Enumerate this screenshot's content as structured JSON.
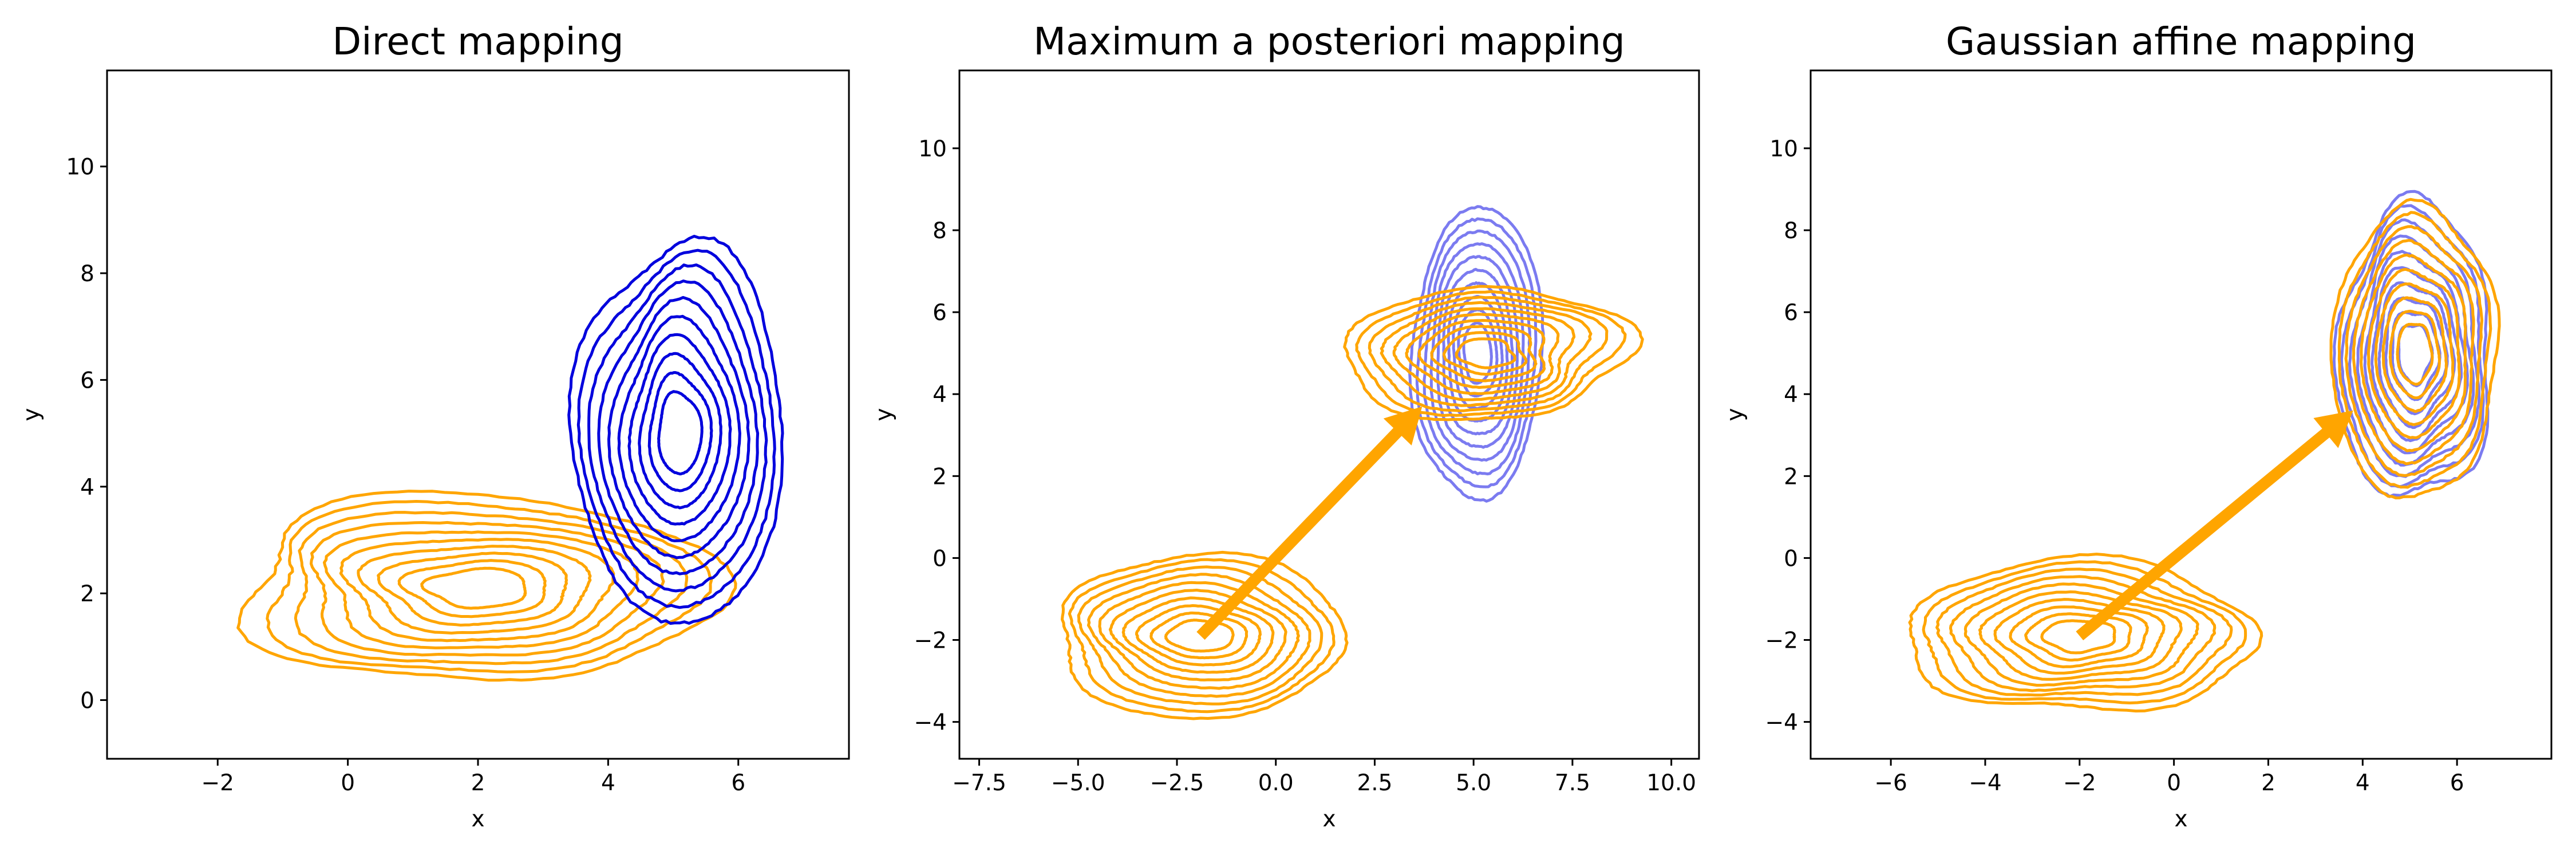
{
  "chart_data": [
    {
      "type": "contour",
      "title": "Direct mapping",
      "xlabel": "x",
      "ylabel": "y",
      "xlim": [
        -3.7,
        7.7
      ],
      "ylim": [
        -1.1,
        11.8
      ],
      "xticks": [
        -2,
        0,
        2,
        4,
        6
      ],
      "xtick_labels": [
        "−2",
        "0",
        "2",
        "4",
        "6"
      ],
      "yticks": [
        0,
        2,
        4,
        6,
        8,
        10
      ],
      "ytick_labels": [
        "0",
        "2",
        "4",
        "6",
        "8",
        "10"
      ],
      "grid": false,
      "series": [
        {
          "color": "#ffa500",
          "opacity": 1.0,
          "center": [
            2.0,
            2.1
          ],
          "radii": [
            3.7,
            1.75
          ],
          "levels": 10,
          "wobble": 0.07,
          "seed": 1
        },
        {
          "color": "#0000dd",
          "opacity": 1.0,
          "center": [
            5.1,
            5.0
          ],
          "radii": [
            1.6,
            3.6
          ],
          "levels": 10,
          "wobble": 0.06,
          "seed": 2
        }
      ],
      "arrow": null
    },
    {
      "type": "contour",
      "title": "Maximum a posteriori mapping",
      "xlabel": "x",
      "ylabel": "y",
      "xlim": [
        -8.0,
        10.7
      ],
      "ylim": [
        -4.9,
        11.9
      ],
      "xticks": [
        -7.5,
        -5,
        -2.5,
        0,
        2.5,
        5,
        7.5,
        10
      ],
      "xtick_labels": [
        "−7.5",
        "−5.0",
        "−2.5",
        "0.0",
        "2.5",
        "5.0",
        "7.5",
        "10.0"
      ],
      "yticks": [
        -4,
        -2,
        0,
        2,
        4,
        6,
        8,
        10
      ],
      "ytick_labels": [
        "−4",
        "−2",
        "0",
        "2",
        "4",
        "6",
        "8",
        "10"
      ],
      "grid": false,
      "series": [
        {
          "color": "#7b7bf0",
          "opacity": 1.0,
          "center": [
            5.1,
            5.0
          ],
          "radii": [
            1.65,
            3.55
          ],
          "levels": 10,
          "wobble": 0.06,
          "seed": 3
        },
        {
          "color": "#ffa500",
          "opacity": 1.0,
          "center": [
            -1.9,
            -1.9
          ],
          "radii": [
            3.8,
            1.9
          ],
          "levels": 10,
          "wobble": 0.07,
          "seed": 4
        },
        {
          "color": "#ffa500",
          "opacity": 1.0,
          "center": [
            5.3,
            5.0
          ],
          "radii": [
            3.5,
            1.65
          ],
          "levels": 10,
          "wobble": 0.07,
          "seed": 5
        }
      ],
      "arrow": {
        "from": [
          -1.9,
          -1.9
        ],
        "to": [
          3.7,
          3.7
        ],
        "color": "#ffa500"
      }
    },
    {
      "type": "contour",
      "title": "Gaussian affine mapping",
      "xlabel": "x",
      "ylabel": "y",
      "xlim": [
        -7.7,
        8.0
      ],
      "ylim": [
        -4.9,
        11.9
      ],
      "xticks": [
        -6,
        -4,
        -2,
        0,
        2,
        4,
        6
      ],
      "xtick_labels": [
        "−6",
        "−4",
        "−2",
        "0",
        "2",
        "4",
        "6"
      ],
      "yticks": [
        -4,
        -2,
        0,
        2,
        4,
        6,
        8,
        10
      ],
      "ytick_labels": [
        "−4",
        "−2",
        "0",
        "2",
        "4",
        "6",
        "8",
        "10"
      ],
      "grid": false,
      "series": [
        {
          "color": "#7b7bf0",
          "opacity": 1.0,
          "center": [
            5.1,
            5.0
          ],
          "radii": [
            1.65,
            3.55
          ],
          "levels": 10,
          "wobble": 0.06,
          "seed": 6
        },
        {
          "color": "#ffa500",
          "opacity": 1.0,
          "center": [
            -2.0,
            -1.9
          ],
          "radii": [
            3.7,
            1.85
          ],
          "levels": 10,
          "wobble": 0.07,
          "seed": 7
        },
        {
          "color": "#ffa500",
          "opacity": 1.0,
          "center": [
            5.1,
            5.0
          ],
          "radii": [
            1.75,
            3.55
          ],
          "levels": 10,
          "wobble": 0.07,
          "seed": 8
        }
      ],
      "arrow": {
        "from": [
          -2.0,
          -1.9
        ],
        "to": [
          3.8,
          3.6
        ],
        "color": "#ffa500"
      }
    }
  ]
}
